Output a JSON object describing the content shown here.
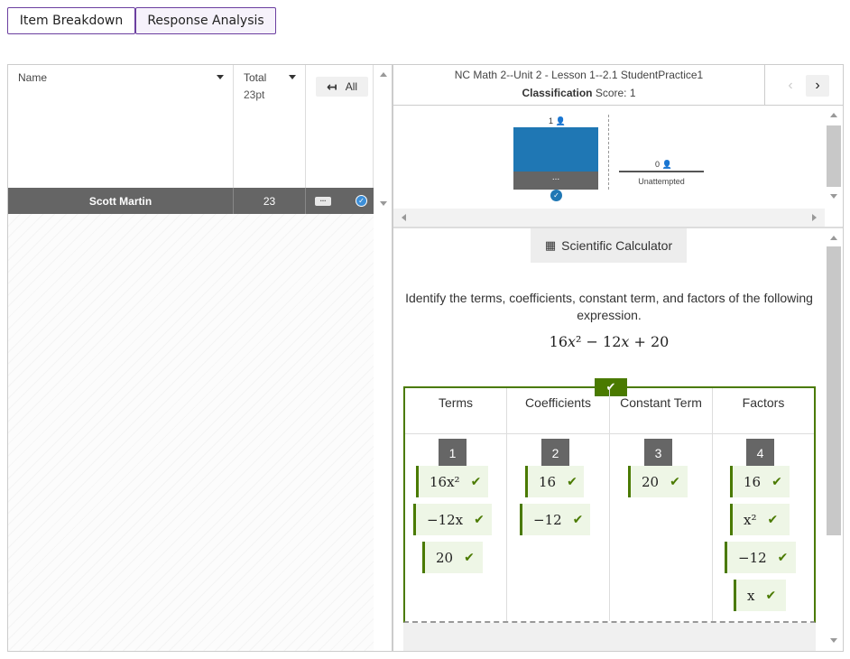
{
  "tabs": {
    "item_breakdown": "Item Breakdown",
    "response_analysis": "Response Analysis"
  },
  "left": {
    "col_name": "Name",
    "col_total": "Total",
    "col_total_sub": "23pt",
    "all_button": "All",
    "row": {
      "name": "Scott Martin",
      "total": "23",
      "more": "..."
    }
  },
  "right": {
    "title": "NC Math 2--Unit 2 - Lesson 1--2.1 StudentPractice1",
    "classification_label": "Classification",
    "score_text": "Score: 1",
    "chart": {
      "bar_count": "1",
      "bar_label": "...",
      "unattempted_count": "0",
      "unattempted_label": "Unattempted"
    },
    "calculator": "Scientific Calculator",
    "prompt": "Identify the terms, coefficients, constant term, and factors of the following expression.",
    "columns": [
      {
        "header": "Terms",
        "num": "1"
      },
      {
        "header": "Coefficients",
        "num": "2"
      },
      {
        "header": "Constant Term",
        "num": "3"
      },
      {
        "header": "Factors",
        "num": "4"
      }
    ],
    "chips": {
      "terms": [
        "16x²",
        "−12x",
        "20"
      ],
      "coefficients": [
        "16",
        "−12"
      ],
      "constant": [
        "20"
      ],
      "factors": [
        "16",
        "x²",
        "−12",
        "x"
      ]
    }
  },
  "chart_data": {
    "type": "bar",
    "categories": [
      "...",
      "Unattempted"
    ],
    "values": [
      1,
      0
    ]
  }
}
